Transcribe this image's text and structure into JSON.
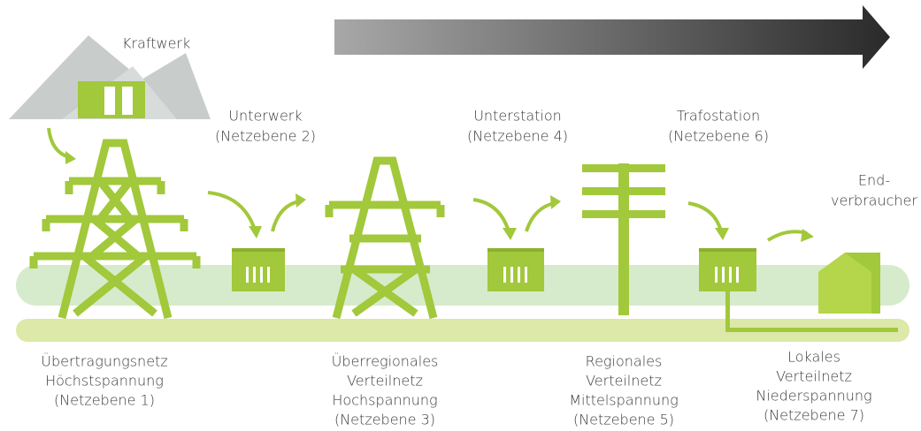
{
  "power_source": {
    "label": "Kraftwerk"
  },
  "top_labels": [
    {
      "lines": [
        "Unterwerk",
        "(Netzebene 2)"
      ]
    },
    {
      "lines": [
        "Unterstation",
        "(Netzebene 4)"
      ]
    },
    {
      "lines": [
        "Trafostation",
        "(Netzebene 6)"
      ]
    },
    {
      "lines": [
        "End-",
        "verbraucher"
      ]
    }
  ],
  "bottom_labels": [
    {
      "lines": [
        "Übertragungsnetz",
        "Höchstspannung",
        "(Netzebene 1)"
      ]
    },
    {
      "lines": [
        "Überregionales",
        "Verteilnetz",
        "Hochspannung",
        "(Netzebene 3)"
      ]
    },
    {
      "lines": [
        "Regionales",
        "Verteilnetz",
        "Mittelspannung",
        "(Netzebene 5)"
      ]
    },
    {
      "lines": [
        "Lokales",
        "Verteilnetz",
        "Niederspannung",
        "(Netzebene 7)"
      ]
    }
  ]
}
